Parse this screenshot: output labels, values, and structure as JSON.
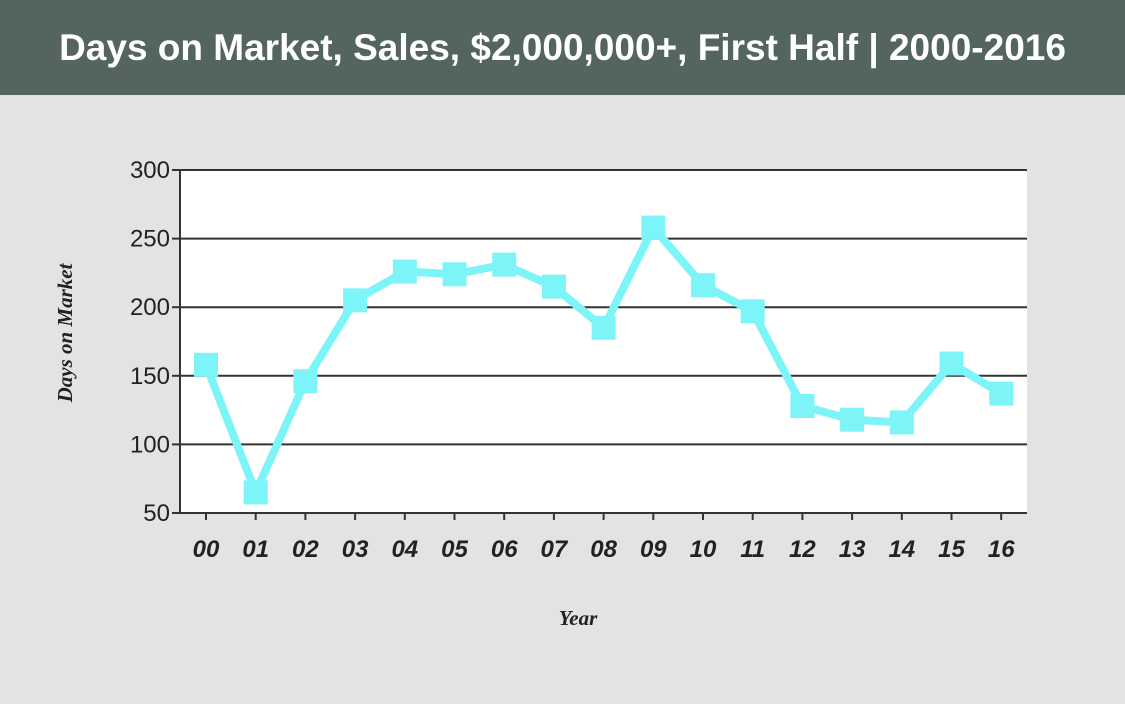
{
  "header": {
    "title": "Days on Market, Sales, $2,000,000+, First Half | 2000-2016"
  },
  "colors": {
    "header_bg": "#546461",
    "page_bg": "#e3e3e3",
    "plot_bg": "#ffffff",
    "series": "#7df4f7",
    "gridline": "#333333"
  },
  "chart_data": {
    "type": "line",
    "title": "Days on Market, Sales, $2,000,000+, First Half | 2000-2016",
    "xlabel": "Year",
    "ylabel": "Days on Market",
    "categories": [
      "00",
      "01",
      "02",
      "03",
      "04",
      "05",
      "06",
      "07",
      "08",
      "09",
      "10",
      "11",
      "12",
      "13",
      "14",
      "15",
      "16"
    ],
    "series": [
      {
        "values": [
          158,
          65,
          146,
          205,
          226,
          224,
          231,
          215,
          185,
          258,
          216,
          197,
          128,
          118,
          116,
          159,
          137
        ]
      }
    ],
    "ylim": [
      50,
      300
    ],
    "yticks": [
      50,
      100,
      150,
      200,
      250,
      300
    ],
    "grid": true,
    "marker": "square"
  }
}
